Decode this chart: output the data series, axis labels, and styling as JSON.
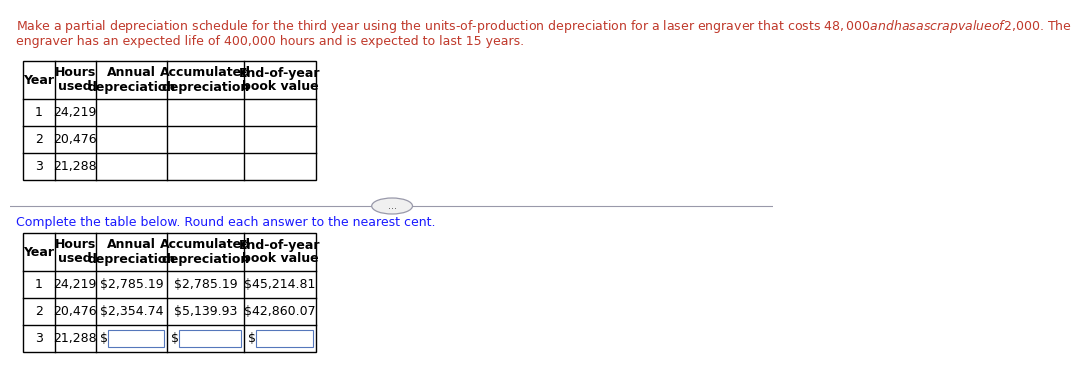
{
  "intro_line1": "Make a partial depreciation schedule for the third year using the units-of-production depreciation for a laser engraver that costs $48,000 and has a scrap value of $2,000. The",
  "intro_line2": "engraver has an expected life of 400,000 hours and is expected to last 15 years.",
  "complete_text": "Complete the table below. Round each answer to the nearest cent.",
  "table1_rows": [
    [
      "1",
      "24,219",
      "",
      "",
      ""
    ],
    [
      "2",
      "20,476",
      "",
      "",
      ""
    ],
    [
      "3",
      "21,288",
      "",
      "",
      ""
    ]
  ],
  "table2_rows": [
    [
      "1",
      "24,219",
      "$2,785.19",
      "$2,785.19",
      "$45,214.81"
    ],
    [
      "2",
      "20,476",
      "$2,354.74",
      "$5,139.93",
      "$42,860.07"
    ],
    [
      "3",
      "21,288",
      "",
      "",
      ""
    ]
  ],
  "intro_color": "#c0392b",
  "complete_color": "#1a1aff",
  "text_color": "#1a1aff",
  "bg_color": "#ffffff",
  "font_size": 9.0,
  "small_font": 8.5
}
